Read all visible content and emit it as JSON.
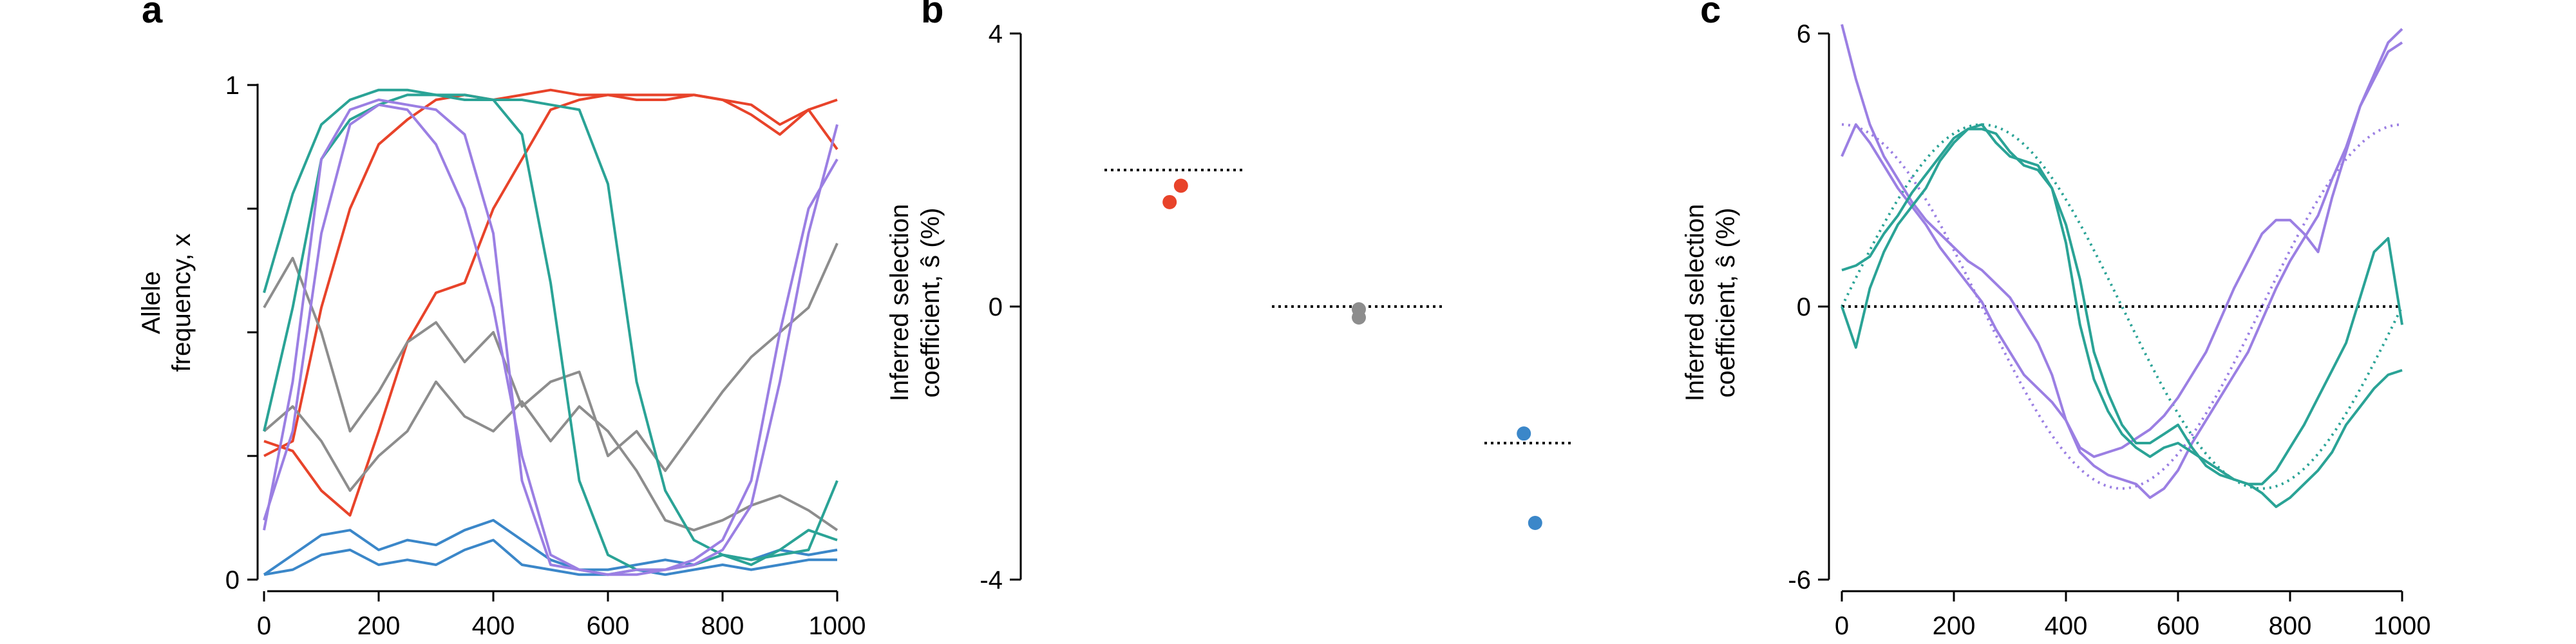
{
  "figure": {
    "panel_letters": [
      "a",
      "b",
      "c"
    ],
    "colors": {
      "red": "#e8432a",
      "gray": "#8d8d8d",
      "blue": "#3b87c9",
      "teal": "#2aa396",
      "purple": "#9b7fe3",
      "axis": "#000000"
    }
  },
  "chart_data": [
    {
      "panel": "a",
      "type": "line",
      "xlabel": "",
      "ylabel_lines": [
        "Allele",
        "frequency, x"
      ],
      "xlim": [
        0,
        1000
      ],
      "ylim": [
        0,
        1
      ],
      "xticks": [
        0,
        200,
        400,
        600,
        800,
        1000
      ],
      "yticks": [
        0,
        1
      ],
      "ytick_labels": [
        "0",
        "1"
      ],
      "grid": false,
      "series": [
        {
          "color": "red",
          "x": [
            0,
            50,
            100,
            150,
            200,
            250,
            300,
            350,
            400,
            450,
            500,
            550,
            600,
            650,
            700,
            750,
            800,
            850,
            900,
            950,
            1000
          ],
          "y": [
            0.28,
            0.26,
            0.18,
            0.13,
            0.3,
            0.48,
            0.58,
            0.6,
            0.75,
            0.85,
            0.95,
            0.97,
            0.98,
            0.98,
            0.98,
            0.98,
            0.97,
            0.96,
            0.92,
            0.95,
            0.97
          ]
        },
        {
          "color": "red",
          "x": [
            0,
            50,
            100,
            150,
            200,
            250,
            300,
            350,
            400,
            450,
            500,
            550,
            600,
            650,
            700,
            750,
            800,
            850,
            900,
            950,
            1000
          ],
          "y": [
            0.25,
            0.28,
            0.55,
            0.75,
            0.88,
            0.93,
            0.97,
            0.98,
            0.97,
            0.98,
            0.99,
            0.98,
            0.98,
            0.97,
            0.97,
            0.98,
            0.97,
            0.94,
            0.9,
            0.95,
            0.87
          ]
        },
        {
          "color": "gray",
          "x": [
            0,
            50,
            100,
            150,
            200,
            250,
            300,
            350,
            400,
            450,
            500,
            550,
            600,
            650,
            700,
            750,
            800,
            850,
            900,
            950,
            1000
          ],
          "y": [
            0.55,
            0.65,
            0.5,
            0.3,
            0.38,
            0.48,
            0.52,
            0.44,
            0.5,
            0.35,
            0.4,
            0.42,
            0.25,
            0.3,
            0.22,
            0.3,
            0.38,
            0.45,
            0.5,
            0.55,
            0.68
          ]
        },
        {
          "color": "gray",
          "x": [
            0,
            50,
            100,
            150,
            200,
            250,
            300,
            350,
            400,
            450,
            500,
            550,
            600,
            650,
            700,
            750,
            800,
            850,
            900,
            950,
            1000
          ],
          "y": [
            0.3,
            0.35,
            0.28,
            0.18,
            0.25,
            0.3,
            0.4,
            0.33,
            0.3,
            0.36,
            0.28,
            0.35,
            0.3,
            0.22,
            0.12,
            0.1,
            0.12,
            0.15,
            0.17,
            0.14,
            0.1
          ]
        },
        {
          "color": "blue",
          "x": [
            0,
            50,
            100,
            150,
            200,
            250,
            300,
            350,
            400,
            450,
            500,
            550,
            600,
            650,
            700,
            750,
            800,
            850,
            900,
            950,
            1000
          ],
          "y": [
            0.01,
            0.05,
            0.09,
            0.1,
            0.06,
            0.08,
            0.07,
            0.1,
            0.12,
            0.08,
            0.04,
            0.02,
            0.02,
            0.03,
            0.04,
            0.03,
            0.05,
            0.04,
            0.06,
            0.05,
            0.06
          ]
        },
        {
          "color": "blue",
          "x": [
            0,
            50,
            100,
            150,
            200,
            250,
            300,
            350,
            400,
            450,
            500,
            550,
            600,
            650,
            700,
            750,
            800,
            850,
            900,
            950,
            1000
          ],
          "y": [
            0.01,
            0.02,
            0.05,
            0.06,
            0.03,
            0.04,
            0.03,
            0.06,
            0.08,
            0.03,
            0.02,
            0.01,
            0.01,
            0.02,
            0.01,
            0.02,
            0.03,
            0.02,
            0.03,
            0.04,
            0.04
          ]
        },
        {
          "color": "teal",
          "x": [
            0,
            50,
            100,
            150,
            200,
            250,
            300,
            350,
            400,
            450,
            500,
            550,
            600,
            650,
            700,
            750,
            800,
            850,
            900,
            950,
            1000
          ],
          "y": [
            0.58,
            0.78,
            0.92,
            0.97,
            0.99,
            0.99,
            0.98,
            0.98,
            0.97,
            0.97,
            0.96,
            0.95,
            0.8,
            0.4,
            0.18,
            0.08,
            0.05,
            0.04,
            0.05,
            0.06,
            0.2
          ]
        },
        {
          "color": "teal",
          "x": [
            0,
            50,
            100,
            150,
            200,
            250,
            300,
            350,
            400,
            450,
            500,
            550,
            600,
            650,
            700,
            750,
            800,
            850,
            900,
            950,
            1000
          ],
          "y": [
            0.3,
            0.55,
            0.85,
            0.93,
            0.96,
            0.98,
            0.98,
            0.97,
            0.97,
            0.9,
            0.6,
            0.2,
            0.05,
            0.02,
            0.02,
            0.03,
            0.05,
            0.03,
            0.06,
            0.1,
            0.08
          ]
        },
        {
          "color": "purple",
          "x": [
            0,
            50,
            100,
            150,
            200,
            250,
            300,
            350,
            400,
            450,
            500,
            550,
            600,
            650,
            700,
            750,
            800,
            850,
            900,
            950,
            1000
          ],
          "y": [
            0.1,
            0.4,
            0.85,
            0.95,
            0.97,
            0.96,
            0.95,
            0.9,
            0.7,
            0.2,
            0.03,
            0.02,
            0.01,
            0.02,
            0.02,
            0.03,
            0.06,
            0.15,
            0.4,
            0.7,
            0.92
          ]
        },
        {
          "color": "purple",
          "x": [
            0,
            50,
            100,
            150,
            200,
            250,
            300,
            350,
            400,
            450,
            500,
            550,
            600,
            650,
            700,
            750,
            800,
            850,
            900,
            950,
            1000
          ],
          "y": [
            0.12,
            0.3,
            0.7,
            0.92,
            0.96,
            0.95,
            0.88,
            0.75,
            0.55,
            0.25,
            0.05,
            0.02,
            0.01,
            0.01,
            0.02,
            0.04,
            0.08,
            0.2,
            0.5,
            0.75,
            0.85
          ]
        }
      ]
    },
    {
      "panel": "b",
      "type": "scatter",
      "xlabel": "",
      "ylabel_lines": [
        "Inferred selection",
        "coefficient, ŝ (%)"
      ],
      "ylim": [
        -4,
        4
      ],
      "yticks": [
        -4,
        0,
        4
      ],
      "ytick_labels": [
        "-4",
        "0",
        "4"
      ],
      "categories": [
        "1",
        "2",
        "3"
      ],
      "true_values": [
        {
          "category": 1,
          "value": 2.0
        },
        {
          "category": 2,
          "value": 0.0
        },
        {
          "category": 3,
          "value": -2.0
        }
      ],
      "points": [
        {
          "category": 1,
          "offset": -0.04,
          "value": 1.53,
          "color": "red"
        },
        {
          "category": 1,
          "offset": 0.04,
          "value": 1.77,
          "color": "red"
        },
        {
          "category": 2,
          "offset": 0.0,
          "value": -0.04,
          "color": "gray"
        },
        {
          "category": 2,
          "offset": 0.0,
          "value": -0.16,
          "color": "gray"
        },
        {
          "category": 3,
          "offset": -0.04,
          "value": -1.86,
          "color": "blue"
        },
        {
          "category": 3,
          "offset": 0.04,
          "value": -3.17,
          "color": "blue"
        }
      ]
    },
    {
      "panel": "c",
      "type": "line",
      "xlabel": "",
      "ylabel_lines": [
        "Inferred selection",
        "coefficient, ŝ (%)"
      ],
      "xlim": [
        0,
        1000
      ],
      "ylim": [
        -6,
        6
      ],
      "xticks": [
        0,
        200,
        400,
        600,
        800,
        1000
      ],
      "yticks": [
        -6,
        0,
        6
      ],
      "ytick_labels": [
        "-6",
        "0",
        "6"
      ],
      "grid": false,
      "zero_line": 0,
      "true_curves": [
        {
          "color": "purple",
          "period": 1000,
          "amplitude": 4,
          "phase_deg": 90,
          "x_points": 101
        },
        {
          "color": "teal",
          "period": 1000,
          "amplitude": 4,
          "phase_deg": 0,
          "shift": 0.0,
          "x_points": 101
        }
      ],
      "series": [
        {
          "color": "purple",
          "x": [
            0,
            25,
            50,
            75,
            100,
            125,
            150,
            175,
            200,
            225,
            250,
            275,
            300,
            325,
            350,
            375,
            400,
            425,
            450,
            475,
            500,
            525,
            550,
            575,
            600,
            625,
            650,
            675,
            700,
            725,
            750,
            775,
            800,
            825,
            850,
            875,
            900,
            925,
            950,
            975,
            1000
          ],
          "y": [
            6.2,
            5.0,
            4.0,
            3.3,
            2.8,
            2.3,
            1.9,
            1.6,
            1.3,
            1.0,
            0.8,
            0.5,
            0.2,
            -0.3,
            -0.8,
            -1.5,
            -2.5,
            -3.2,
            -3.5,
            -3.7,
            -3.8,
            -3.9,
            -4.2,
            -4.0,
            -3.6,
            -3.0,
            -2.5,
            -2.0,
            -1.5,
            -1.0,
            -0.3,
            0.4,
            1.0,
            1.5,
            2.0,
            2.8,
            3.5,
            4.4,
            5.0,
            5.6,
            5.8
          ]
        },
        {
          "color": "purple",
          "x": [
            0,
            25,
            50,
            75,
            100,
            125,
            150,
            175,
            200,
            225,
            250,
            275,
            300,
            325,
            350,
            375,
            400,
            425,
            450,
            475,
            500,
            525,
            550,
            575,
            600,
            625,
            650,
            675,
            700,
            725,
            750,
            775,
            800,
            825,
            850,
            875,
            900,
            925,
            950,
            975,
            1000
          ],
          "y": [
            3.3,
            4.0,
            3.6,
            3.1,
            2.6,
            2.2,
            1.8,
            1.3,
            0.9,
            0.5,
            0.1,
            -0.5,
            -1.0,
            -1.5,
            -1.8,
            -2.1,
            -2.5,
            -3.1,
            -3.3,
            -3.2,
            -3.1,
            -2.9,
            -2.7,
            -2.4,
            -2.0,
            -1.5,
            -1.0,
            -0.3,
            0.4,
            1.0,
            1.6,
            1.9,
            1.9,
            1.6,
            1.2,
            2.4,
            3.4,
            4.4,
            5.1,
            5.8,
            6.1
          ]
        },
        {
          "color": "teal",
          "x": [
            0,
            25,
            50,
            75,
            100,
            125,
            150,
            175,
            200,
            225,
            250,
            275,
            300,
            325,
            350,
            375,
            400,
            425,
            450,
            475,
            500,
            525,
            550,
            575,
            600,
            625,
            650,
            675,
            700,
            725,
            750,
            775,
            800,
            825,
            850,
            875,
            900,
            925,
            950,
            975,
            1000
          ],
          "y": [
            0.8,
            0.9,
            1.1,
            1.6,
            2.0,
            2.5,
            2.9,
            3.3,
            3.7,
            3.9,
            3.9,
            3.8,
            3.4,
            3.1,
            3.0,
            2.6,
            1.8,
            0.6,
            -1.0,
            -1.9,
            -2.6,
            -3.0,
            -3.0,
            -2.8,
            -2.6,
            -3.1,
            -3.5,
            -3.7,
            -3.8,
            -3.9,
            -4.1,
            -4.4,
            -4.2,
            -3.9,
            -3.6,
            -3.2,
            -2.6,
            -2.2,
            -1.8,
            -1.5,
            -1.4
          ]
        },
        {
          "color": "teal",
          "x": [
            0,
            25,
            50,
            75,
            100,
            125,
            150,
            175,
            200,
            225,
            250,
            275,
            300,
            325,
            350,
            375,
            400,
            425,
            450,
            475,
            500,
            525,
            550,
            575,
            600,
            625,
            650,
            675,
            700,
            725,
            750,
            775,
            800,
            825,
            850,
            875,
            900,
            925,
            950,
            975,
            1000
          ],
          "y": [
            0.0,
            -0.9,
            0.4,
            1.2,
            1.8,
            2.2,
            2.6,
            3.2,
            3.6,
            3.9,
            4.0,
            3.6,
            3.3,
            3.2,
            3.1,
            2.6,
            1.4,
            -0.4,
            -1.6,
            -2.3,
            -2.8,
            -3.1,
            -3.3,
            -3.1,
            -3.0,
            -3.2,
            -3.4,
            -3.6,
            -3.8,
            -3.9,
            -3.9,
            -3.6,
            -3.1,
            -2.6,
            -2.0,
            -1.4,
            -0.8,
            0.2,
            1.2,
            1.5,
            -0.4
          ]
        }
      ]
    }
  ]
}
